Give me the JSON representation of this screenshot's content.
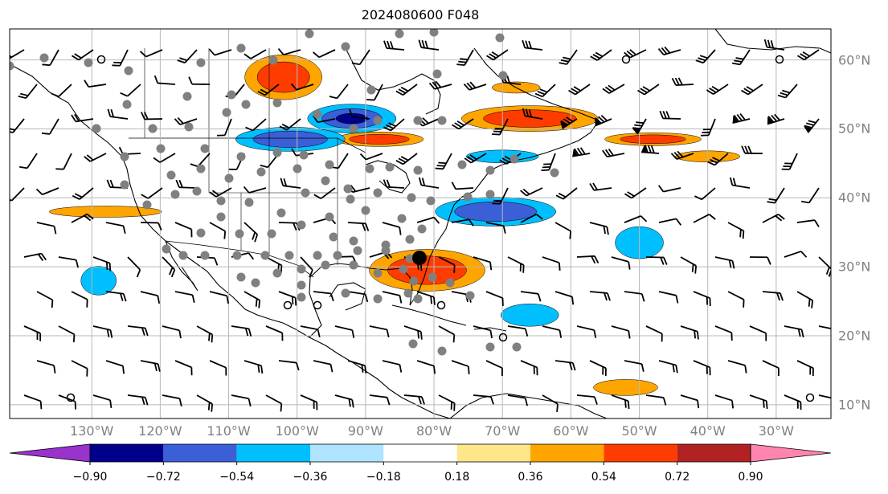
{
  "title": "2024080600 F048",
  "map": {
    "projection": "plate-carree",
    "lon_range": [
      -142,
      -22
    ],
    "lat_range": [
      8,
      64.5
    ],
    "gridlines": true,
    "grid_color": "#b8b8b8",
    "land_outline_color": "#000000",
    "station_dot_color": "#808080",
    "storm_center_color": "#000000"
  },
  "lon_labels": [
    "130°W",
    "120°W",
    "110°W",
    "100°W",
    "90°W",
    "80°W",
    "70°W",
    "60°W",
    "50°W",
    "40°W",
    "30°W"
  ],
  "lat_labels": [
    "60°N",
    "50°N",
    "40°N",
    "30°N",
    "20°N",
    "10°N"
  ],
  "colorbar": {
    "orientation": "horizontal",
    "extend": "both",
    "colors": [
      "#9933cc",
      "#00008b",
      "#3b5fd6",
      "#00bfff",
      "#aee4ff",
      "#ffffff",
      "#ffe68a",
      "#ffa500",
      "#ff3c00",
      "#b22222",
      "#ff85b0"
    ],
    "tick_labels": [
      "−0.90",
      "−0.72",
      "−0.54",
      "−0.36",
      "−0.18",
      "0.18",
      "0.36",
      "0.54",
      "0.72",
      "0.90"
    ]
  },
  "features": {
    "positive_anomalies": [
      {
        "lon": -102,
        "lat": 57.5,
        "level": 0.72
      },
      {
        "lon": -66,
        "lat": 51.5,
        "level": 0.72
      },
      {
        "lon": -81,
        "lat": 29.5,
        "level": 0.72
      },
      {
        "lon": -88,
        "lat": 48.5,
        "level": 0.54
      },
      {
        "lon": -48,
        "lat": 48.5,
        "level": 0.54
      },
      {
        "lon": -128,
        "lat": 38,
        "level": 0.36
      },
      {
        "lon": -40,
        "lat": 46,
        "level": 0.36
      },
      {
        "lon": -68,
        "lat": 56,
        "level": 0.36
      },
      {
        "lon": -52,
        "lat": 12.5,
        "level": 0.36
      }
    ],
    "negative_anomalies": [
      {
        "lon": -92,
        "lat": 51.5,
        "level": -0.72
      },
      {
        "lon": -101,
        "lat": 48.5,
        "level": -0.54
      },
      {
        "lon": -71,
        "lat": 38,
        "level": -0.54
      },
      {
        "lon": -129,
        "lat": 28,
        "level": -0.36
      },
      {
        "lon": -50,
        "lat": 33.5,
        "level": -0.36
      },
      {
        "lon": -66,
        "lat": 23,
        "level": -0.36
      },
      {
        "lon": -70,
        "lat": 46,
        "level": -0.36
      }
    ]
  }
}
